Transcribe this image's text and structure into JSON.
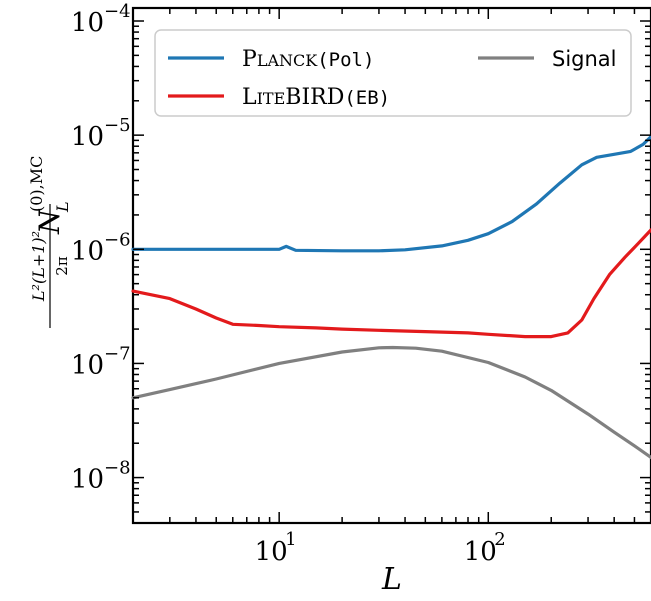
{
  "chart_data": {
    "type": "line",
    "xscale": "log",
    "yscale": "log",
    "xlim": [
      2,
      600
    ],
    "ylim": [
      4e-09,
      0.00013
    ],
    "xlabel": "L",
    "ylabel": "L²(L+1)²/2π N_L^(0),MC",
    "x_tick_labels": [
      {
        "value": 10,
        "base": "10",
        "exp": "1"
      },
      {
        "value": 100,
        "base": "10",
        "exp": "2"
      }
    ],
    "y_tick_labels": [
      {
        "value": 1e-08,
        "base": "10",
        "exp": "−8"
      },
      {
        "value": 1e-07,
        "base": "10",
        "exp": "−7"
      },
      {
        "value": 1e-06,
        "base": "10",
        "exp": "−6"
      },
      {
        "value": 1e-05,
        "base": "10",
        "exp": "−5"
      },
      {
        "value": 0.0001,
        "base": "10",
        "exp": "−4"
      }
    ],
    "legend": {
      "position": "top",
      "entries": [
        {
          "series": "planck",
          "label_sc_first": "P",
          "label_sc_rest": "LANCK",
          "label_code": "(Pol)"
        },
        {
          "series": "litebird",
          "label_sc_first": "L",
          "label_sc_rest": "ITE",
          "label_main": "BIRD",
          "label_code": "(EB)"
        },
        {
          "series": "signal",
          "label": "Signal"
        }
      ]
    },
    "series": [
      {
        "id": "planck",
        "color": "#1f77b4",
        "points": [
          [
            2,
            1e-06
          ],
          [
            5,
            1e-06
          ],
          [
            10,
            1e-06
          ],
          [
            10.8,
            1.06e-06
          ],
          [
            12,
            9.8e-07
          ],
          [
            20,
            9.7e-07
          ],
          [
            30,
            9.7e-07
          ],
          [
            40,
            9.9e-07
          ],
          [
            60,
            1.07e-06
          ],
          [
            80,
            1.2e-06
          ],
          [
            100,
            1.37e-06
          ],
          [
            130,
            1.75e-06
          ],
          [
            170,
            2.5e-06
          ],
          [
            220,
            3.8e-06
          ],
          [
            280,
            5.5e-06
          ],
          [
            330,
            6.4e-06
          ],
          [
            400,
            6.8e-06
          ],
          [
            480,
            7.2e-06
          ],
          [
            550,
            8.3e-06
          ],
          [
            600,
            9.7e-06
          ]
        ]
      },
      {
        "id": "litebird",
        "color": "#e31a1c",
        "points": [
          [
            2,
            4.3e-07
          ],
          [
            3,
            3.7e-07
          ],
          [
            4,
            3e-07
          ],
          [
            5,
            2.5e-07
          ],
          [
            6,
            2.2e-07
          ],
          [
            8,
            2.15e-07
          ],
          [
            10,
            2.1e-07
          ],
          [
            15,
            2.05e-07
          ],
          [
            20,
            2e-07
          ],
          [
            30,
            1.95e-07
          ],
          [
            50,
            1.9e-07
          ],
          [
            80,
            1.85e-07
          ],
          [
            100,
            1.8e-07
          ],
          [
            150,
            1.72e-07
          ],
          [
            200,
            1.72e-07
          ],
          [
            240,
            1.85e-07
          ],
          [
            280,
            2.4e-07
          ],
          [
            320,
            3.7e-07
          ],
          [
            380,
            6e-07
          ],
          [
            450,
            8.5e-07
          ],
          [
            520,
            1.12e-06
          ],
          [
            600,
            1.48e-06
          ]
        ]
      },
      {
        "id": "signal",
        "color": "#808080",
        "points": [
          [
            2,
            5e-08
          ],
          [
            3,
            5.9e-08
          ],
          [
            5,
            7.3e-08
          ],
          [
            10,
            1e-07
          ],
          [
            20,
            1.26e-07
          ],
          [
            30,
            1.37e-07
          ],
          [
            35,
            1.38e-07
          ],
          [
            45,
            1.36e-07
          ],
          [
            60,
            1.28e-07
          ],
          [
            100,
            1.02e-07
          ],
          [
            150,
            7.6e-08
          ],
          [
            200,
            5.8e-08
          ],
          [
            300,
            3.6e-08
          ],
          [
            400,
            2.5e-08
          ],
          [
            500,
            1.9e-08
          ],
          [
            600,
            1.5e-08
          ]
        ]
      }
    ]
  }
}
